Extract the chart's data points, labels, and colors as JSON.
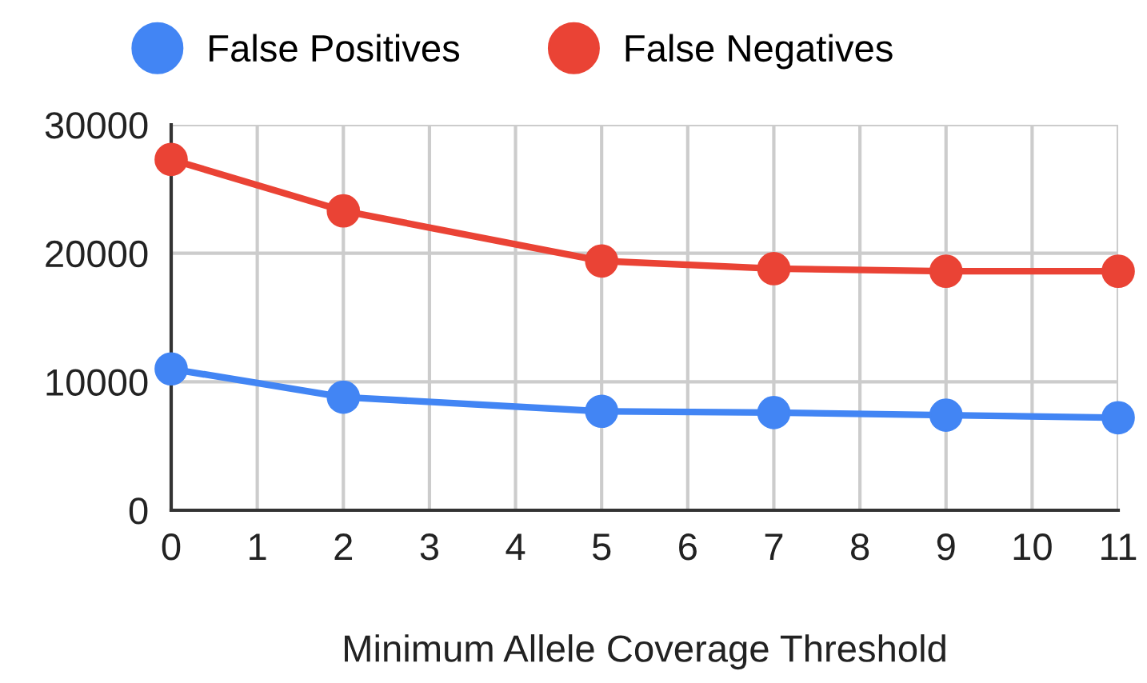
{
  "chart_data": {
    "type": "line",
    "xlabel": "Minimum Allele Coverage Threshold",
    "x": [
      0,
      2,
      5,
      7,
      9,
      11
    ],
    "series": [
      {
        "name": "False Positives",
        "color": "#4285f4",
        "values": [
          11000,
          8800,
          7700,
          7600,
          7400,
          7200
        ]
      },
      {
        "name": "False Negatives",
        "color": "#ea4335",
        "values": [
          27300,
          23300,
          19400,
          18800,
          18600,
          18600
        ]
      }
    ],
    "xlim": [
      0,
      11
    ],
    "xticks": [
      0,
      1,
      2,
      3,
      4,
      5,
      6,
      7,
      8,
      9,
      10,
      11
    ],
    "ylim": [
      0,
      30000
    ],
    "yticks": [
      0,
      10000,
      20000,
      30000
    ],
    "grid": true,
    "legend": "top",
    "marker": "circle",
    "line_style": "solid"
  }
}
